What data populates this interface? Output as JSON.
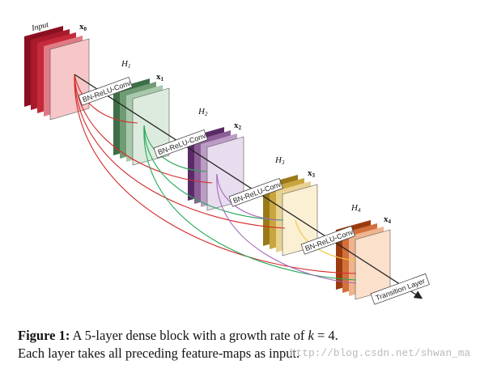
{
  "diagram": {
    "input_label": "Input",
    "x_labels": [
      "x0",
      "x1",
      "x2",
      "x3",
      "x4"
    ],
    "h_labels": [
      "H1",
      "H2",
      "H3",
      "H4"
    ],
    "conv_label": "BN-ReLU-Conv",
    "transition_label": "Transition Layer",
    "colors": {
      "input": [
        "#8a1020",
        "#a81a2c",
        "#c42a3a",
        "#e07a84",
        "#f6c6c8"
      ],
      "h1": [
        "#3e6e48",
        "#6f9c74",
        "#a9c9ad",
        "#dcebdd"
      ],
      "h2": [
        "#5a2a66",
        "#8d5f98",
        "#bb9cc4",
        "#e8dcef"
      ],
      "h3": [
        "#9a7a18",
        "#c9a53e",
        "#e8d292",
        "#fbf0d4"
      ],
      "h4": [
        "#9a3a0e",
        "#d2703c",
        "#efb48e",
        "#fbe0cc"
      ],
      "arrow_colors": [
        "#d42b2b",
        "#27a85a",
        "#a668b8",
        "#f0c43a"
      ]
    }
  },
  "caption": {
    "figure_label": "Figure 1:",
    "text_line1_a": "A 5-layer dense block with a growth rate of",
    "k_symbol": "k",
    "text_line1_b": "= 4.",
    "text_line2": "Each layer takes all preceding feature-maps as input."
  },
  "watermark": "http://blog.csdn.net/shwan_ma"
}
